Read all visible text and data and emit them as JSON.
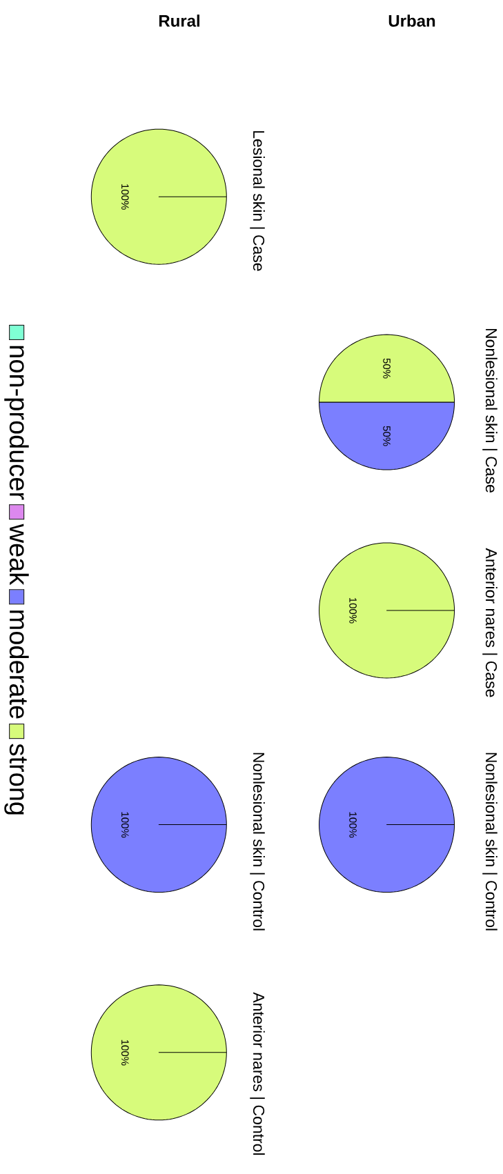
{
  "chart_data": [
    {
      "type": "pie",
      "title": "Lesional skin | Case",
      "annotations": [
        "Rural"
      ],
      "legend": "left",
      "categories": [
        "non-producer",
        "weak",
        "moderate",
        "strong"
      ],
      "values": [
        0,
        0,
        0,
        100
      ],
      "value_labels": [
        null,
        null,
        null,
        "100%"
      ],
      "colors": [
        "#7fffd4",
        "#dd88ee",
        "#7b7fff",
        "#d7fb7b"
      ]
    },
    {
      "type": "pie",
      "title": "Nonlesional skin | Control",
      "categories": [
        null,
        null,
        null,
        null
      ],
      "values": [
        0,
        0,
        100,
        0
      ],
      "value_labels": [
        null,
        null,
        "100%",
        null
      ],
      "colors": [
        "#7fffd4",
        "#dd88ee",
        "#7b7fff",
        "#d7fb7b"
      ]
    },
    {
      "type": "pie",
      "title": "Anterior nares | Control",
      "categories": [
        null,
        null,
        null,
        null
      ],
      "values": [
        0,
        0,
        0,
        100
      ],
      "value_labels": [
        null,
        null,
        null,
        "100%"
      ],
      "colors": [
        "#7fffd4",
        "#dd88ee",
        "#7b7fff",
        "#d7fb7b"
      ]
    },
    {
      "type": "pie",
      "title": "Nonlesional skin | Case",
      "annotations": [
        "Urban"
      ],
      "categories": [
        null,
        null,
        null,
        null
      ],
      "values": [
        0,
        0,
        50,
        50
      ],
      "value_labels": [
        null,
        null,
        "50%",
        "50%"
      ],
      "colors": [
        "#7fffd4",
        "#dd88ee",
        "#7b7fff",
        "#d7fb7b"
      ]
    },
    {
      "type": "pie",
      "title": "Anterior nares | Case",
      "categories": [
        null,
        null,
        null,
        null
      ],
      "values": [
        0,
        0,
        0,
        100
      ],
      "value_labels": [
        null,
        null,
        null,
        "100%"
      ],
      "colors": [
        "#7fffd4",
        "#dd88ee",
        "#7b7fff",
        "#d7fb7b"
      ]
    },
    {
      "type": "pie",
      "title": "Nonlesional skin | Control",
      "categories": [
        null,
        null,
        null,
        null
      ],
      "values": [
        0,
        0,
        100,
        0
      ],
      "value_labels": [
        null,
        null,
        "100%",
        null
      ],
      "colors": [
        "#7fffd4",
        "#dd88ee",
        "#7b7fff",
        "#d7fb7b"
      ]
    }
  ]
}
